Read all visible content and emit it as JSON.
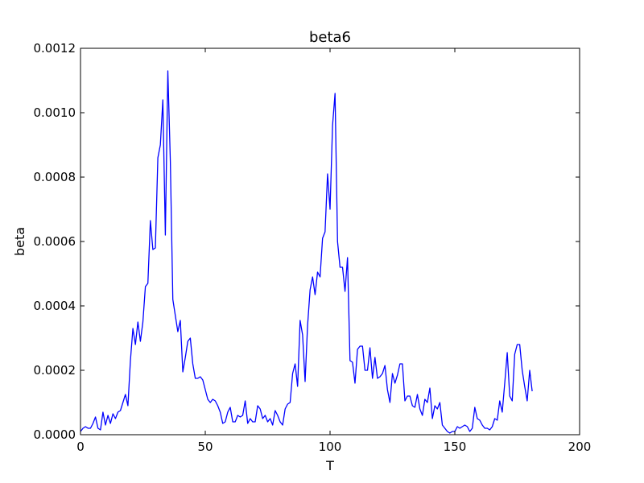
{
  "chart_data": {
    "type": "line",
    "title": "beta6",
    "xlabel": "T",
    "ylabel": "beta",
    "xlim": [
      0,
      200
    ],
    "ylim": [
      0,
      0.0012
    ],
    "xticks": [
      0,
      50,
      100,
      150,
      200
    ],
    "xtick_labels": [
      "0",
      "50",
      "100",
      "150",
      "200"
    ],
    "yticks": [
      0,
      0.0002,
      0.0004,
      0.0006,
      0.0008,
      0.001,
      0.0012
    ],
    "ytick_labels": [
      "0.0000",
      "0.0002",
      "0.0004",
      "0.0006",
      "0.0008",
      "0.0010",
      "0.0012"
    ],
    "grid": false,
    "line_color": "#0000ff",
    "series": [
      {
        "x": [
          0,
          1,
          2,
          3,
          4,
          5,
          6,
          7,
          8,
          9,
          10,
          11,
          12,
          13,
          14,
          15,
          16,
          17,
          18,
          19,
          20,
          21,
          22,
          23,
          24,
          25,
          26,
          27,
          28,
          29,
          30,
          31,
          32,
          33,
          34,
          35,
          36,
          37,
          38,
          39,
          40,
          41,
          42,
          43,
          44,
          45,
          46,
          47,
          48,
          49,
          50,
          51,
          52,
          53,
          54,
          55,
          56,
          57,
          58,
          59,
          60,
          61,
          62,
          63,
          64,
          65,
          66,
          67,
          68,
          69,
          70,
          71,
          72,
          73,
          74,
          75,
          76,
          77,
          78,
          79,
          80,
          81,
          82,
          83,
          84,
          85,
          86,
          87,
          88,
          89,
          90,
          91,
          92,
          93,
          94,
          95,
          96,
          97,
          98,
          99,
          100,
          101,
          102,
          103,
          104,
          105,
          106,
          107,
          108,
          109,
          110,
          111,
          112,
          113,
          114,
          115,
          116,
          117,
          118,
          119,
          120,
          121,
          122,
          123,
          124,
          125,
          126,
          127,
          128,
          129,
          130,
          131,
          132,
          133,
          134,
          135,
          136,
          137,
          138,
          139,
          140,
          141,
          142,
          143,
          144,
          145,
          146,
          147,
          148,
          149,
          150,
          151,
          152,
          153,
          154,
          155,
          156,
          157,
          158,
          159,
          160,
          161,
          162,
          163,
          164,
          165,
          166,
          167,
          168,
          169,
          170,
          171,
          172,
          173,
          174,
          175,
          176,
          177,
          178,
          179,
          180,
          181
        ],
        "values": [
          1e-05,
          2e-05,
          2.5e-05,
          2e-05,
          2e-05,
          3.5e-05,
          5.5e-05,
          2e-05,
          1.5e-05,
          7e-05,
          3e-05,
          6e-05,
          3.5e-05,
          6.5e-05,
          5e-05,
          7e-05,
          7.5e-05,
          0.0001,
          0.000125,
          9e-05,
          0.00023,
          0.00033,
          0.00028,
          0.00035,
          0.00029,
          0.00035,
          0.00046,
          0.00047,
          0.000665,
          0.000575,
          0.00058,
          0.00086,
          0.0009,
          0.00104,
          0.00062,
          0.00113,
          0.00085,
          0.00042,
          0.00037,
          0.00032,
          0.000355,
          0.000195,
          0.00024,
          0.00029,
          0.0003,
          0.00022,
          0.000175,
          0.000175,
          0.00018,
          0.00017,
          0.00014,
          0.00011,
          0.0001,
          0.00011,
          0.000105,
          9e-05,
          7e-05,
          3.5e-05,
          4e-05,
          7e-05,
          8.5e-05,
          4e-05,
          4e-05,
          6e-05,
          5.5e-05,
          6e-05,
          0.000105,
          3.5e-05,
          5e-05,
          4e-05,
          4e-05,
          9e-05,
          8e-05,
          5e-05,
          6e-05,
          4e-05,
          5e-05,
          3e-05,
          7.5e-05,
          6e-05,
          4e-05,
          3e-05,
          8e-05,
          9.5e-05,
          0.0001,
          0.00019,
          0.00022,
          0.00015,
          0.000355,
          0.00031,
          0.000165,
          0.00034,
          0.00045,
          0.00049,
          0.000435,
          0.000505,
          0.00049,
          0.00061,
          0.00063,
          0.00081,
          0.0007,
          0.00096,
          0.00106,
          0.0006,
          0.00052,
          0.00052,
          0.000445,
          0.00055,
          0.00023,
          0.000225,
          0.00016,
          0.000265,
          0.000275,
          0.000275,
          0.0002,
          0.0002,
          0.00027,
          0.000175,
          0.00024,
          0.000175,
          0.00018,
          0.00019,
          0.000215,
          0.00014,
          0.0001,
          0.00019,
          0.00016,
          0.000185,
          0.00022,
          0.00022,
          0.000105,
          0.00012,
          0.00012,
          9e-05,
          8.5e-05,
          0.000125,
          8e-05,
          6e-05,
          0.00011,
          0.0001,
          0.000145,
          5e-05,
          9e-05,
          8e-05,
          0.0001,
          3e-05,
          2e-05,
          1e-05,
          5e-06,
          1e-05,
          1e-05,
          2.5e-05,
          2e-05,
          2.5e-05,
          3e-05,
          2.5e-05,
          1e-05,
          2e-05,
          8.5e-05,
          5e-05,
          4.5e-05,
          3e-05,
          2e-05,
          2e-05,
          1.5e-05,
          2.5e-05,
          5e-05,
          4.5e-05,
          0.000105,
          7e-05,
          0.00016,
          0.000255,
          0.00012,
          0.000105,
          0.00025,
          0.00028,
          0.00028,
          0.0002,
          0.00015,
          0.000105,
          0.0002,
          0.000135
        ]
      }
    ]
  }
}
